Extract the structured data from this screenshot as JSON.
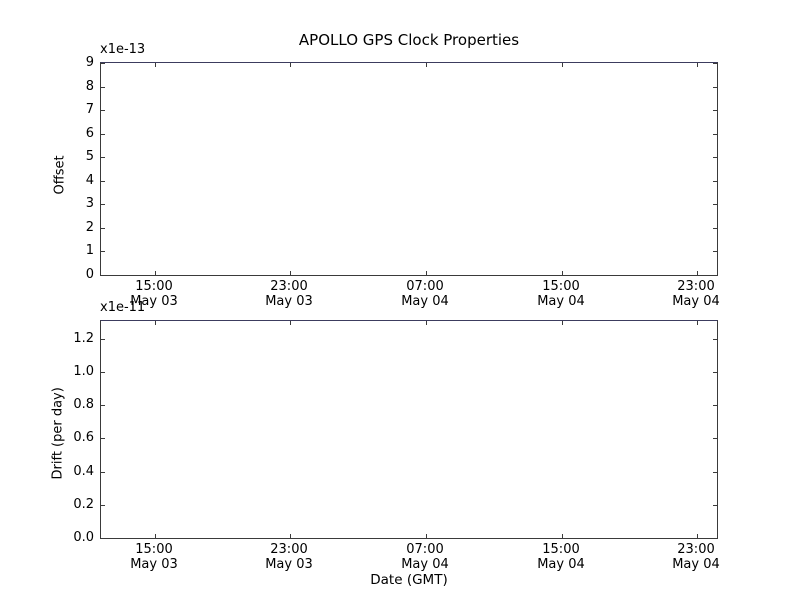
{
  "title": "APOLLO GPS Clock Properties",
  "xlabel": "Date (GMT)",
  "colors": {
    "background": "#ffffff",
    "spine": "#3a3a3a",
    "top_spine": "#3c3c5e",
    "text": "#000000"
  },
  "chart_data": [
    {
      "type": "line",
      "title": "APOLLO GPS Clock Properties",
      "ylabel": "Offset",
      "y_scale_label": "x1e-13",
      "ylim": [
        0,
        9
      ],
      "ytick_values": [
        0,
        1,
        2,
        3,
        4,
        5,
        6,
        7,
        8,
        9
      ],
      "ytick_labels": [
        "0",
        "1",
        "2",
        "3",
        "4",
        "5",
        "6",
        "7",
        "8",
        "9"
      ],
      "xtick_labels": [
        [
          "15:00",
          "May 03"
        ],
        [
          "23:00",
          "May 03"
        ],
        [
          "07:00",
          "May 04"
        ],
        [
          "15:00",
          "May 04"
        ],
        [
          "23:00",
          "May 04"
        ]
      ],
      "grid": false,
      "legend": null,
      "series": []
    },
    {
      "type": "line",
      "title": "",
      "xlabel": "Date (GMT)",
      "ylabel": "Drift (per day)",
      "y_scale_label": "x1e-11",
      "ylim": [
        0,
        1.308
      ],
      "ytick_values": [
        0.0,
        0.2,
        0.4,
        0.6,
        0.8,
        1.0,
        1.2
      ],
      "ytick_labels": [
        "0.0",
        "0.2",
        "0.4",
        "0.6",
        "0.8",
        "1.0",
        "1.2"
      ],
      "xtick_labels": [
        [
          "15:00",
          "May 03"
        ],
        [
          "23:00",
          "May 03"
        ],
        [
          "07:00",
          "May 04"
        ],
        [
          "15:00",
          "May 04"
        ],
        [
          "23:00",
          "May 04"
        ]
      ],
      "grid": false,
      "legend": null,
      "series": []
    }
  ]
}
